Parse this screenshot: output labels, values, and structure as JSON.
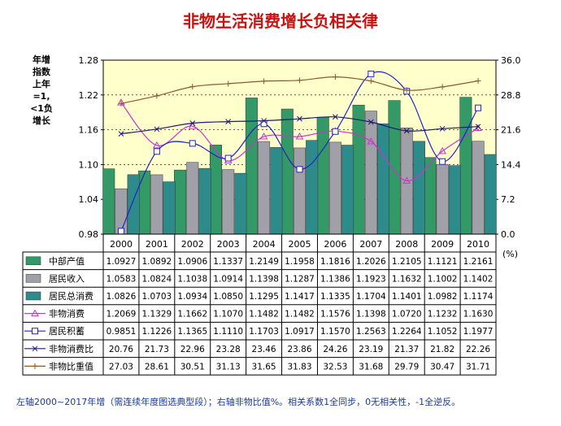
{
  "title": "非物生活消费增长负相关律",
  "left_axis_label": "年增指数上年=1,<1负增长",
  "right_axis_unit": "(%)",
  "footnote": "左轴2000~2017年增（需连续年度图选典型段）；右轴非物比值%。相关系数1全同步，0无相关性，-1全逆反。",
  "colors": {
    "plot_bg": "#ffffcc",
    "bar_green": "#339966",
    "bar_gray": "#a0a0a8",
    "bar_teal": "#2e8b8b",
    "line_magenta": "#cc33cc",
    "line_blue": "#2222cc",
    "line_navy": "#1a1a6e",
    "line_brown": "#8b5a2b"
  },
  "chart_data": {
    "type": "bar",
    "categories": [
      "2000",
      "2001",
      "2002",
      "2003",
      "2004",
      "2005",
      "2006",
      "2007",
      "2008",
      "2009",
      "2010"
    ],
    "left_axis": {
      "ylim": [
        0.98,
        1.28
      ],
      "ticks": [
        "0.98",
        "1.04",
        "1.10",
        "1.16",
        "1.22",
        "1.28"
      ]
    },
    "right_axis": {
      "ylim": [
        0.0,
        36.0
      ],
      "ticks": [
        "0.0",
        "7.2",
        "14.4",
        "21.6",
        "28.8",
        "36.0"
      ]
    },
    "series": [
      {
        "name": "中部产值",
        "kind": "bar",
        "axis": "left",
        "color": "#339966",
        "values": [
          1.0927,
          1.0892,
          1.0906,
          1.1337,
          1.2149,
          1.1958,
          1.1816,
          1.2026,
          1.2105,
          1.1121,
          1.2161
        ],
        "labels": [
          "1.0927",
          "1.0892",
          "1.0906",
          "1.1337",
          "1.2149",
          "1.1958",
          "1.1816",
          "1.2026",
          "1.2105",
          "1.1121",
          "1.2161"
        ]
      },
      {
        "name": "居民收入",
        "kind": "bar",
        "axis": "left",
        "color": "#a0a0a8",
        "values": [
          1.0583,
          1.0824,
          1.1038,
          1.0914,
          1.1398,
          1.1287,
          1.1386,
          1.1923,
          1.1632,
          1.1002,
          1.1402
        ],
        "labels": [
          "1.0583",
          "1.0824",
          "1.1038",
          "1.0914",
          "1.1398",
          "1.1287",
          "1.1386",
          "1.1923",
          "1.1632",
          "1.1002",
          "1.1402"
        ]
      },
      {
        "name": "居民总消费",
        "kind": "bar",
        "axis": "left",
        "color": "#2e8b8b",
        "values": [
          1.0826,
          1.0703,
          1.0934,
          1.085,
          1.1295,
          1.1417,
          1.1335,
          1.1704,
          1.1401,
          1.0982,
          1.1174
        ],
        "labels": [
          "1.0826",
          "1.0703",
          "1.0934",
          "1.0850",
          "1.1295",
          "1.1417",
          "1.1335",
          "1.1704",
          "1.1401",
          "1.0982",
          "1.1174"
        ]
      },
      {
        "name": "非物消费",
        "kind": "line",
        "axis": "left",
        "marker": "triangle",
        "color": "#cc33cc",
        "values": [
          1.2069,
          1.1329,
          1.1662,
          1.107,
          1.1482,
          1.1482,
          1.1576,
          1.1398,
          1.072,
          1.1232,
          1.163
        ],
        "labels": [
          "1.2069",
          "1.1329",
          "1.1662",
          "1.1070",
          "1.1482",
          "1.1482",
          "1.1576",
          "1.1398",
          "1.0720",
          "1.1232",
          "1.1630"
        ]
      },
      {
        "name": "居民积蓄",
        "kind": "line",
        "axis": "left",
        "marker": "square",
        "color": "#2222cc",
        "values": [
          0.9851,
          1.1226,
          1.1365,
          1.111,
          1.1703,
          1.0917,
          1.157,
          1.2563,
          1.2264,
          1.1052,
          1.1977
        ],
        "labels": [
          "0.9851",
          "1.1226",
          "1.1365",
          "1.1110",
          "1.1703",
          "1.0917",
          "1.1570",
          "1.2563",
          "1.2264",
          "1.1052",
          "1.1977"
        ]
      },
      {
        "name": "非物消费比",
        "kind": "line",
        "axis": "right",
        "marker": "x",
        "color": "#1a1a6e",
        "values": [
          20.76,
          21.73,
          22.96,
          23.28,
          23.46,
          23.86,
          24.26,
          23.19,
          21.37,
          21.82,
          22.26
        ],
        "labels": [
          "20.76",
          "21.73",
          "22.96",
          "23.28",
          "23.46",
          "23.86",
          "24.26",
          "23.19",
          "21.37",
          "21.82",
          "22.26"
        ]
      },
      {
        "name": "非物比重值",
        "kind": "line",
        "axis": "right",
        "marker": "plus",
        "color": "#8b5a2b",
        "values": [
          27.03,
          28.61,
          30.51,
          31.13,
          31.65,
          31.83,
          32.53,
          31.68,
          29.79,
          30.47,
          31.71
        ],
        "labels": [
          "27.03",
          "28.61",
          "30.51",
          "31.13",
          "31.65",
          "31.83",
          "32.53",
          "31.68",
          "29.79",
          "30.47",
          "31.71"
        ]
      }
    ]
  }
}
